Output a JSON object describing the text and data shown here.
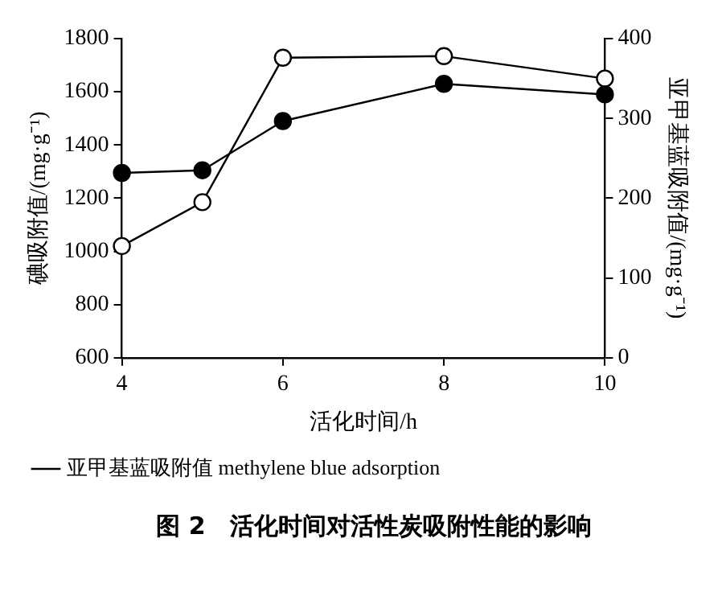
{
  "chart_data": {
    "type": "line",
    "xlabel": "活化时间/h",
    "ylabel": "碘吸附值/(mg·g⁻¹)",
    "y2label": "亚甲基蓝吸附值/(mg·g⁻¹)",
    "x": [
      4,
      5,
      6,
      8,
      10
    ],
    "series": [
      {
        "color": "#000000",
        "values": [
          1295,
          1305,
          1490,
          1630,
          1590
        ],
        "marker": "circle"
      },
      {
        "name": "亚甲基蓝吸附值 methylene blue adsorption",
        "color": "#000000",
        "values": [
          140,
          195,
          376,
          378,
          350
        ],
        "axis": "y2",
        "marker": "circle"
      }
    ],
    "xlim": [
      4,
      10
    ],
    "xticks": [
      4,
      6,
      8,
      10
    ],
    "ylim": [
      600,
      1800
    ],
    "yticks": [
      600,
      800,
      1000,
      1200,
      1400,
      1600,
      1800
    ],
    "y2lim": [
      0,
      400
    ],
    "y2ticks": [
      0,
      100,
      200,
      300,
      400
    ],
    "grid": false,
    "legend": "bottom left",
    "line_style": "solid",
    "annotations": [
      "图 2　活化时间对活性炭吸附性能的影响"
    ]
  }
}
